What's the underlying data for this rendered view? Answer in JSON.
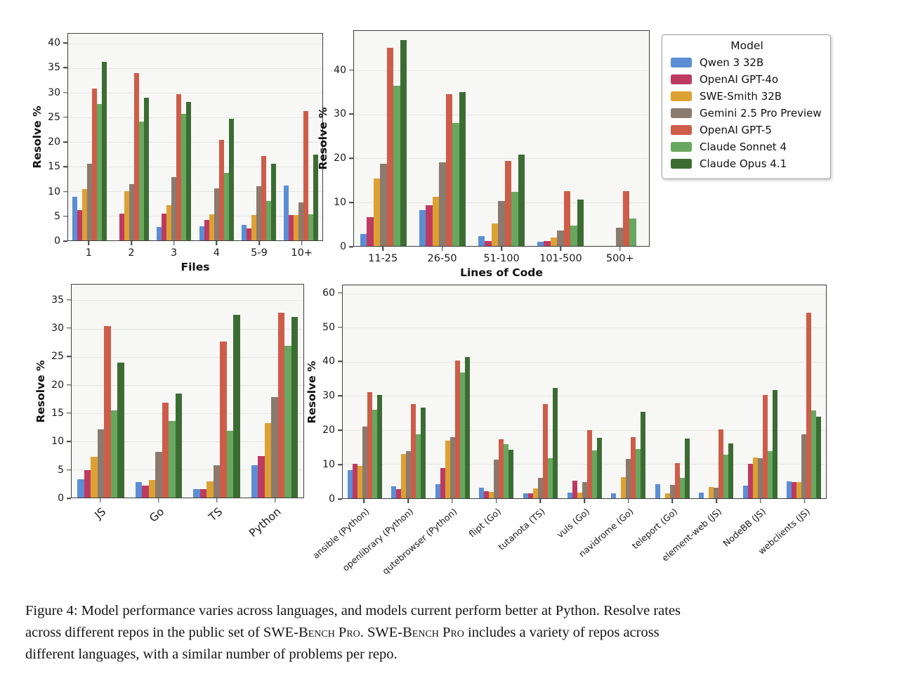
{
  "legend": {
    "title": "Model",
    "entries": [
      {
        "label": "Qwen 3 32B",
        "color": "#5b8ed4"
      },
      {
        "label": "OpenAI GPT-4o",
        "color": "#bd3a63"
      },
      {
        "label": "SWE-Smith 32B",
        "color": "#dda133"
      },
      {
        "label": "Gemini 2.5 Pro Preview",
        "color": "#8b7a6e"
      },
      {
        "label": "OpenAI GPT-5",
        "color": "#cd5d49"
      },
      {
        "label": "Claude Sonnet 4",
        "color": "#68a75f"
      },
      {
        "label": "Claude Opus 4.1",
        "color": "#3b6d33"
      }
    ]
  },
  "chart_data": [
    {
      "id": "files",
      "type": "bar",
      "title": "",
      "xlabel": "Files",
      "ylabel": "Resolve %",
      "ylim": [
        0,
        42
      ],
      "yticks": [
        0,
        5,
        10,
        15,
        20,
        25,
        30,
        35,
        40
      ],
      "grid": true,
      "rotate_xticks": false,
      "categories": [
        "1",
        "2",
        "3",
        "4",
        "5-9",
        "10+"
      ],
      "series": [
        {
          "name": "Qwen 3 32B",
          "values": [
            8.8,
            0,
            2.7,
            2.8,
            3.2,
            11.2
          ]
        },
        {
          "name": "OpenAI GPT-4o",
          "values": [
            6.1,
            5.4,
            5.5,
            4.1,
            2.4,
            5.2
          ]
        },
        {
          "name": "SWE-Smith 32B",
          "values": [
            10.5,
            10.0,
            7.2,
            5.3,
            5.1,
            5.2
          ]
        },
        {
          "name": "Gemini 2.5 Pro Preview",
          "values": [
            15.6,
            11.5,
            12.9,
            10.6,
            11.0,
            7.7
          ]
        },
        {
          "name": "OpenAI GPT-5",
          "values": [
            30.8,
            34.0,
            29.7,
            20.5,
            17.1,
            26.3
          ]
        },
        {
          "name": "Claude Sonnet 4",
          "values": [
            27.7,
            24.2,
            25.7,
            13.7,
            8.0,
            5.3
          ]
        },
        {
          "name": "Claude Opus 4.1",
          "values": [
            36.3,
            29.0,
            28.1,
            24.7,
            15.6,
            17.5
          ]
        }
      ]
    },
    {
      "id": "loc",
      "type": "bar",
      "title": "",
      "xlabel": "Lines of Code",
      "ylabel": "Resolve %",
      "ylim": [
        0,
        49
      ],
      "yticks": [
        0,
        10,
        20,
        30,
        40
      ],
      "grid": true,
      "rotate_xticks": false,
      "categories": [
        "11-25",
        "26-50",
        "51-100",
        "101-500",
        "500+"
      ],
      "series": [
        {
          "name": "Qwen 3 32B",
          "values": [
            2.8,
            8.2,
            2.3,
            1.0,
            0
          ]
        },
        {
          "name": "OpenAI GPT-4o",
          "values": [
            6.5,
            9.3,
            1.2,
            1.1,
            0
          ]
        },
        {
          "name": "SWE-Smith 32B",
          "values": [
            15.3,
            11.2,
            5.2,
            2.0,
            0
          ]
        },
        {
          "name": "Gemini 2.5 Pro Preview",
          "values": [
            18.8,
            19.0,
            10.2,
            3.5,
            4.1
          ]
        },
        {
          "name": "OpenAI GPT-5",
          "values": [
            45.2,
            34.6,
            19.3,
            12.5,
            12.5
          ]
        },
        {
          "name": "Claude Sonnet 4",
          "values": [
            36.5,
            28.1,
            12.4,
            4.7,
            6.2
          ]
        },
        {
          "name": "Claude Opus 4.1",
          "values": [
            47.0,
            35.0,
            20.8,
            10.6,
            0
          ]
        }
      ]
    },
    {
      "id": "lang",
      "type": "bar",
      "title": "",
      "xlabel": "",
      "ylabel": "Resolve %",
      "ylim": [
        0,
        37.8
      ],
      "yticks": [
        0,
        5,
        10,
        15,
        20,
        25,
        30,
        35
      ],
      "grid": true,
      "rotate_xticks": true,
      "categories": [
        "JS",
        "Go",
        "TS",
        "Python"
      ],
      "series": [
        {
          "name": "Qwen 3 32B",
          "values": [
            3.2,
            2.8,
            1.5,
            5.7
          ]
        },
        {
          "name": "OpenAI GPT-4o",
          "values": [
            4.9,
            2.1,
            1.5,
            7.4
          ]
        },
        {
          "name": "SWE-Smith 32B",
          "values": [
            7.2,
            3.1,
            2.9,
            13.2
          ]
        },
        {
          "name": "Gemini 2.5 Pro Preview",
          "values": [
            12.1,
            8.1,
            5.8,
            17.9
          ]
        },
        {
          "name": "OpenAI GPT-5",
          "values": [
            30.4,
            16.9,
            27.7,
            32.8
          ]
        },
        {
          "name": "Claude Sonnet 4",
          "values": [
            15.5,
            13.6,
            11.8,
            26.9
          ]
        },
        {
          "name": "Claude Opus 4.1",
          "values": [
            24.0,
            18.5,
            32.4,
            32.1
          ]
        }
      ]
    },
    {
      "id": "repo",
      "type": "bar",
      "title": "",
      "xlabel": "",
      "ylabel": "Resolve %",
      "ylim": [
        0,
        62.4
      ],
      "yticks": [
        0,
        10,
        20,
        30,
        40,
        50,
        60
      ],
      "grid": true,
      "rotate_xticks": true,
      "categories": [
        "ansible (Python)",
        "openlibrary (Python)",
        "qutebrowser (Python)",
        "flipt (Go)",
        "tutanota (TS)",
        "vuls (Go)",
        "navidrome (Go)",
        "teleport (Go)",
        "element-web (JS)",
        "NodeBB (JS)",
        "webclients (JS)"
      ],
      "series": [
        {
          "name": "Qwen 3 32B",
          "values": [
            8.2,
            3.5,
            4.2,
            3.0,
            1.4,
            1.6,
            1.5,
            4.2,
            1.6,
            3.8,
            5.0
          ]
        },
        {
          "name": "OpenAI GPT-4o",
          "values": [
            10.0,
            2.7,
            8.8,
            2.0,
            1.4,
            5.2,
            0,
            0,
            0,
            10.0,
            4.8
          ]
        },
        {
          "name": "SWE-Smith 32B",
          "values": [
            9.5,
            13.0,
            16.8,
            1.8,
            2.9,
            1.6,
            6.2,
            1.4,
            3.2,
            12.0,
            4.8
          ]
        },
        {
          "name": "Gemini 2.5 Pro Preview",
          "values": [
            21.0,
            13.8,
            18.0,
            11.3,
            5.9,
            4.8,
            11.5,
            3.9,
            3.1,
            11.7,
            18.8
          ]
        },
        {
          "name": "OpenAI GPT-5",
          "values": [
            31.0,
            27.6,
            40.3,
            17.4,
            27.7,
            20.0,
            18.0,
            10.3,
            20.1,
            30.3,
            54.4
          ]
        },
        {
          "name": "Claude Sonnet 4",
          "values": [
            26.0,
            18.8,
            36.8,
            15.8,
            11.7,
            14.0,
            14.4,
            6.0,
            12.7,
            13.8,
            25.8
          ]
        },
        {
          "name": "Claude Opus 4.1",
          "values": [
            30.3,
            26.6,
            41.4,
            14.3,
            32.4,
            17.8,
            25.3,
            17.5,
            16.1,
            31.8,
            23.8
          ]
        }
      ]
    }
  ],
  "caption": {
    "segments": [
      {
        "t": "Figure 4: Model performance varies across languages, and models current perform better at Python. Resolve rates",
        "br": true
      },
      {
        "t": "across different repos in the public set of "
      },
      {
        "t": "SWE-Bench Pro",
        "sc": true
      },
      {
        "t": ". "
      },
      {
        "t": "SWE-Bench Pro",
        "sc": true
      },
      {
        "t": " includes a variety of repos across",
        "br": true
      },
      {
        "t": "different languages, with a similar number of problems per repo."
      }
    ]
  }
}
